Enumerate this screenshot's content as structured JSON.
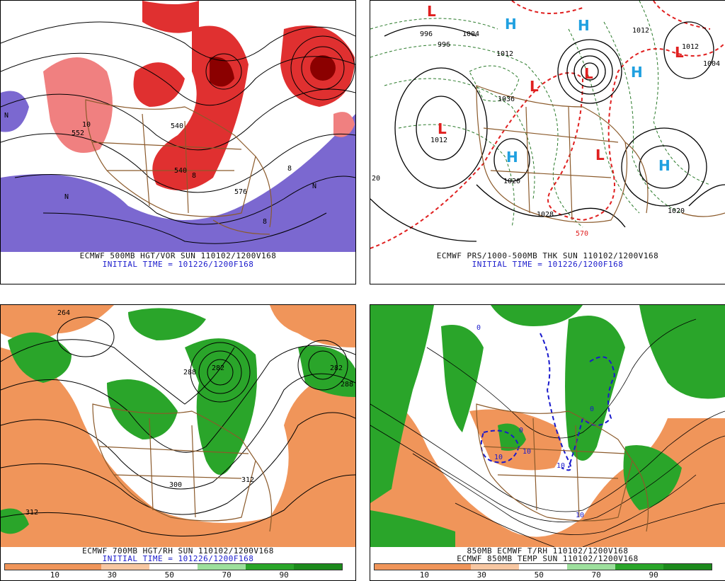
{
  "panels": [
    {
      "caption": "ECMWF 500MB HGT/VOR SUN 110102/1200V168",
      "init": "INITIAL TIME = 101226/1200F168",
      "labels": [
        "540",
        "540",
        "576",
        "552",
        "N",
        "N",
        "N",
        "10",
        "8",
        "8",
        "8"
      ]
    },
    {
      "caption": "ECMWF PRS/1000-500MB THK SUN 110102/1200V168",
      "init": "INITIAL TIME = 101226/1200F168",
      "lows": [
        "L",
        "L",
        "L",
        "L",
        "L",
        "L"
      ],
      "highs": [
        "H",
        "H",
        "H",
        "H",
        "H"
      ],
      "labels": [
        "1012",
        "1028",
        "1020",
        "1012",
        "1004",
        "996",
        "1012",
        "1020",
        "1036",
        "570",
        "20",
        "1012",
        "1004",
        "996"
      ]
    },
    {
      "caption": "ECMWF 700MB HGT/RH SUN 110102/1200V168",
      "init": "INITIAL TIME = 101226/1200F168",
      "labels": [
        "300",
        "312",
        "312",
        "288",
        "282",
        "264",
        "282",
        "288"
      ],
      "colorbar": [
        "10",
        "30",
        "50",
        "70",
        "90"
      ]
    },
    {
      "caption": "850MB ECMWF T/RH 110102/1200V168",
      "init": "ECMWF 850MB TEMP SUN 110102/1200V168",
      "labels": [
        "10",
        "10",
        "10",
        "0",
        "0",
        "10",
        "0"
      ],
      "colorbar": [
        "10",
        "30",
        "50",
        "70",
        "90"
      ]
    }
  ],
  "colors": {
    "vort_light": "#f08080",
    "vort_mid": "#e03030",
    "vort_dark": "#8b0000",
    "neg_vort": "#7b68d0",
    "rh_dry": "#f0955a",
    "rh_moist": "#2aa52a",
    "rh_very_moist": "#1c8a1c",
    "low": "#e02020",
    "high": "#1fa0e0",
    "thickness": "#e02020",
    "cold_isotherm": "#1a1acc",
    "borders": "#8b5a2b"
  }
}
